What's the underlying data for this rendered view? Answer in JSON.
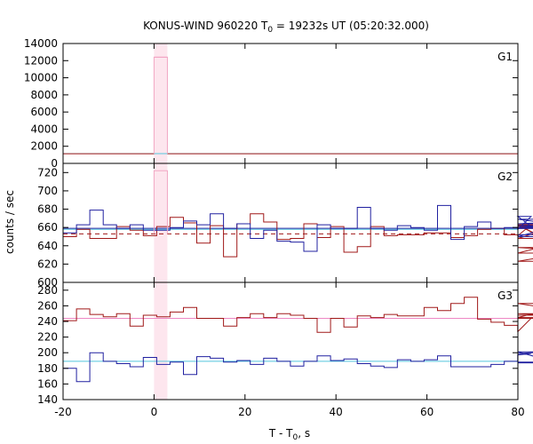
{
  "chart_data": {
    "type": "line",
    "style": "step",
    "title": {
      "prefix": "KONUS-WIND 960220 T",
      "sub": "0",
      "suffix": " = 19232s UT (05:20:32.000)"
    },
    "xlabel": {
      "prefix": "T - T",
      "sub": "0",
      "suffix": ", s"
    },
    "ylabel": "counts / sec",
    "xlim": [
      -20,
      80
    ],
    "xticks": [
      -20,
      0,
      20,
      40,
      60,
      80
    ],
    "grid": false,
    "highlight": {
      "x_range": [
        0,
        2.94
      ],
      "color": "#fde6ee",
      "edge_color": "#f2a7c3"
    },
    "colors": {
      "dark_red": "#a01818",
      "blue": "#2020a0",
      "pink": "#ee88c4",
      "cyan": "#55c5de"
    },
    "panels": [
      {
        "name": "G1",
        "ylim": [
          0,
          14000
        ],
        "yticks": [
          0,
          2000,
          4000,
          6000,
          8000,
          10000,
          12000,
          14000
        ],
        "steps": [
          {
            "x0": -20,
            "x1": 0,
            "y": 1130,
            "color": "#a01818"
          },
          {
            "x0": 0,
            "x1": 2.94,
            "y": 12400,
            "color": "#ee88c4"
          },
          {
            "x0": 2.94,
            "x1": 80,
            "y": 1130,
            "color": "#a01818"
          }
        ],
        "levels": [
          {
            "y": 1140,
            "color": "#55c5de",
            "dash": false
          }
        ]
      },
      {
        "name": "G2",
        "ylim": [
          600,
          730
        ],
        "yticks": [
          600,
          620,
          640,
          660,
          680,
          700,
          720
        ],
        "series": [
          {
            "name": "",
            "color": "#a01818",
            "x0": -20,
            "dx": 2.94,
            "values": [
              650,
              658,
              648,
              648,
              661,
              657,
              651,
              661,
              671,
              665,
              643,
              662,
              628,
              664,
              675,
              666,
              647,
              648,
              664,
              649,
              661,
              633,
              639,
              661,
              651,
              652,
              652,
              654,
              654,
              649,
              651,
              658,
              659,
              652,
              651,
              663,
              648,
              661,
              663,
              623,
              638,
              632,
              662,
              659
            ]
          },
          {
            "name": "",
            "color": "#2020a0",
            "x0": -20,
            "dx": 2.94,
            "values": [
              654,
              663,
              679,
              663,
              659,
              663,
              657,
              657,
              660,
              667,
              663,
              675,
              659,
              664,
              648,
              657,
              645,
              644,
              634,
              663,
              659,
              659,
              682,
              659,
              657,
              662,
              660,
              657,
              684,
              647,
              661,
              666,
              659,
              660,
              658,
              672,
              650,
              662,
              659,
              660,
              660,
              664,
              669,
              652
            ]
          }
        ],
        "pink_step": {
          "x0": 0,
          "x1": 2.94,
          "y": 722
        },
        "levels": [
          {
            "y": 653,
            "color": "#a01818",
            "dash": true
          },
          {
            "y": 659,
            "color": "#2020a0",
            "dash": false
          },
          {
            "y": 658,
            "color": "#55c5de",
            "dash": false
          }
        ]
      },
      {
        "name": "G3",
        "ylim": [
          140,
          290
        ],
        "yticks": [
          140,
          160,
          180,
          200,
          220,
          240,
          260,
          280
        ],
        "series": [
          {
            "name": "",
            "color": "#a01818",
            "x0": -20,
            "dx": 2.94,
            "values": [
              241,
              256,
              249,
              246,
              250,
              234,
              248,
              246,
              252,
              258,
              244,
              244,
              234,
              245,
              250,
              245,
              250,
              248,
              244,
              226,
              244,
              233,
              247,
              245,
              249,
              247,
              247,
              258,
              254,
              263,
              271,
              243,
              239,
              235,
              227,
              244,
              245,
              245,
              263,
              250,
              248,
              248,
              250,
              244
            ]
          },
          {
            "name": "",
            "color": "#2020a0",
            "x0": -20,
            "dx": 2.94,
            "values": [
              180,
              163,
              200,
              189,
              186,
              182,
              194,
              185,
              188,
              172,
              195,
              193,
              188,
              190,
              185,
              193,
              189,
              183,
              189,
              196,
              190,
              192,
              186,
              183,
              181,
              191,
              189,
              191,
              196,
              182,
              182,
              182,
              185,
              189,
              197,
              199,
              201,
              187,
              187,
              188,
              188,
              188,
              188,
              188
            ]
          }
        ],
        "levels": [
          {
            "y": 244,
            "color": "#ee88c4",
            "dash": false
          },
          {
            "y": 189,
            "color": "#55c5de",
            "dash": false
          }
        ]
      }
    ]
  }
}
